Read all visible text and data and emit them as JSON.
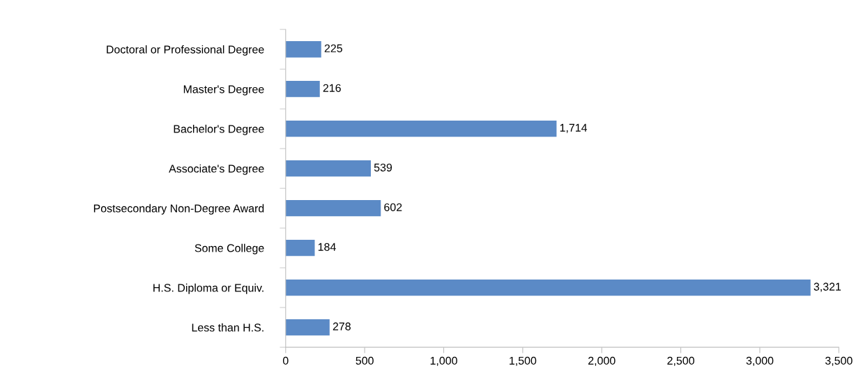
{
  "chart_data": {
    "type": "bar",
    "orientation": "horizontal",
    "categories": [
      "Doctoral or Professional Degree",
      "Master's Degree",
      "Bachelor's Degree",
      "Associate's Degree",
      "Postsecondary Non-Degree Award",
      "Some College",
      "H.S. Diploma or Equiv.",
      "Less than H.S."
    ],
    "values": [
      225,
      216,
      1714,
      539,
      602,
      184,
      3321,
      278
    ],
    "value_labels": [
      "225",
      "216",
      "1,714",
      "539",
      "602",
      "184",
      "3,321",
      "278"
    ],
    "color": "#5b8ac6",
    "xlim": [
      0,
      3500
    ],
    "xticks": [
      0,
      500,
      {
        "value": 1000,
        "label": "1,000"
      },
      {
        "value": 1500,
        "label": "1,500"
      },
      {
        "value": 2000,
        "label": "2,000"
      },
      {
        "value": 2500,
        "label": "2,500"
      },
      {
        "value": 3000,
        "label": "3,000"
      },
      {
        "value": 3500,
        "label": "3,500"
      }
    ],
    "grid": false
  }
}
